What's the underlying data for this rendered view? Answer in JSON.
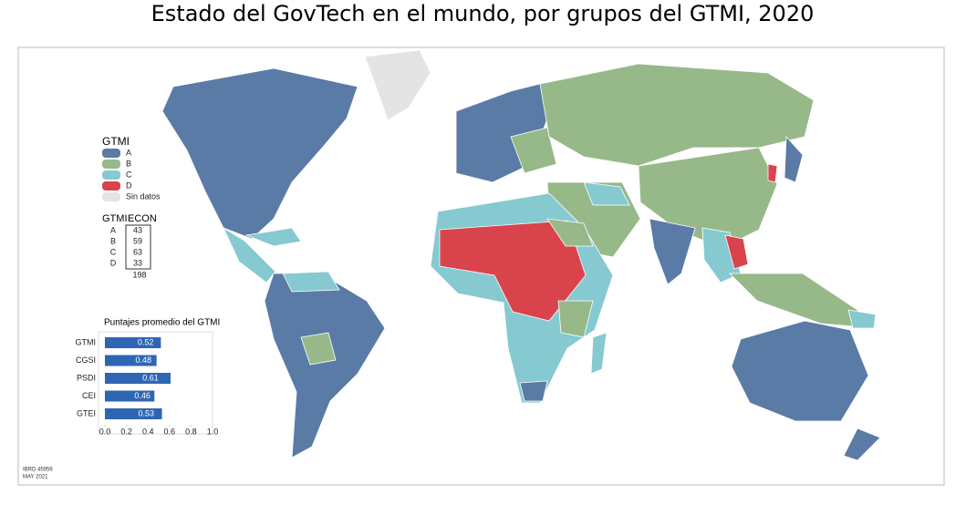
{
  "title": "Estado del GovTech en el mundo, por grupos del GTMI, 2020",
  "legend": {
    "title": "GTMI",
    "items": [
      {
        "label": "A",
        "color": "#5a7ba5"
      },
      {
        "label": "B",
        "color": "#97b98a"
      },
      {
        "label": "C",
        "color": "#86c9d1"
      },
      {
        "label": "D",
        "color": "#d9444c"
      },
      {
        "label": "Sin datos",
        "color": "#e4e4e4"
      }
    ]
  },
  "table": {
    "headers": [
      "GTMI",
      "ECON"
    ],
    "rows": [
      [
        "A",
        43
      ],
      [
        "B",
        59
      ],
      [
        "C",
        63
      ],
      [
        "D",
        33
      ]
    ],
    "total": 198
  },
  "chart_data": {
    "type": "bar",
    "orientation": "horizontal",
    "title": "Puntajes promedio del GTMI",
    "categories": [
      "GTMI",
      "CGSI",
      "PSDI",
      "CEI",
      "GTEI"
    ],
    "values": [
      0.52,
      0.48,
      0.61,
      0.46,
      0.53
    ],
    "color": "#2f66b3",
    "xlim": [
      0,
      1
    ],
    "xticks": [
      {
        "value": 0,
        "label": "0.0"
      },
      0.2,
      0.4,
      0.6,
      0.8,
      {
        "value": 1,
        "label": "1.0"
      }
    ]
  },
  "footer": [
    "IBRD 45956",
    "MAY 2021"
  ]
}
